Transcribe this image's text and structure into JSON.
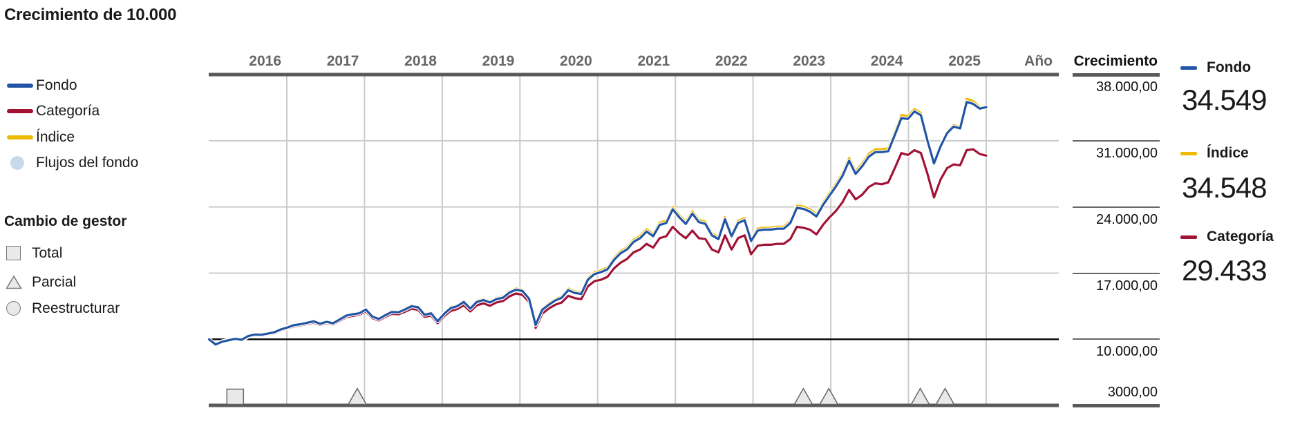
{
  "title": "Crecimiento de 10.000",
  "colors": {
    "fondo": "#2155a4",
    "categoria": "#a11235",
    "indice": "#efbb00",
    "flujos": "#c9d9ec",
    "grid": "#cbcbcb",
    "axis": "#595959",
    "baseline": "#000000",
    "marker_fill": "#e9e9e9",
    "marker_stroke": "#666666",
    "year_text": "#666666"
  },
  "legend": {
    "series": [
      {
        "label": "Fondo",
        "swatch": "dash",
        "color": "#2155a4"
      },
      {
        "label": "Categoría",
        "swatch": "dash",
        "color": "#a11235"
      },
      {
        "label": "Índice",
        "swatch": "dash",
        "color": "#efbb00"
      },
      {
        "label": "Flujos del fondo",
        "swatch": "circle",
        "color": "#c9d9ec"
      }
    ],
    "manager_change": {
      "heading": "Cambio de gestor",
      "items": [
        {
          "label": "Total",
          "shape": "square"
        },
        {
          "label": "Parcial",
          "shape": "triangle"
        },
        {
          "label": "Reestructurar",
          "shape": "circle"
        }
      ]
    }
  },
  "axis": {
    "x_label": "Año",
    "years": [
      "2016",
      "2017",
      "2018",
      "2019",
      "2020",
      "2021",
      "2022",
      "2023",
      "2024",
      "2025"
    ],
    "y_label": "Crecimiento",
    "y_ticks": [
      {
        "label": "38.000,00",
        "value": 38000
      },
      {
        "label": "31.000,00",
        "value": 31000
      },
      {
        "label": "24.000,00",
        "value": 24000
      },
      {
        "label": "17.000,00",
        "value": 17000
      },
      {
        "label": "10.000,00",
        "value": 10000
      },
      {
        "label": "3000,00",
        "value": 3000
      }
    ]
  },
  "summary": [
    {
      "label": "Fondo",
      "value": "34.549",
      "color": "#2155a4"
    },
    {
      "label": "Índice",
      "value": "34.548",
      "color": "#efbb00"
    },
    {
      "label": "Categoría",
      "value": "29.433",
      "color": "#a11235"
    }
  ],
  "chart_data": {
    "type": "line",
    "title": "Crecimiento de 10.000",
    "x_start_year": 2016,
    "points_per_year": 12,
    "ylim": [
      3000,
      38000
    ],
    "baseline": 10000,
    "grid_values": [
      31000,
      24000,
      17000
    ],
    "legend_position": "left",
    "series": [
      {
        "name": "Índice",
        "color": "#efbb00",
        "final_label": "34.548",
        "values": [
          10000,
          9480,
          9790,
          9940,
          10090,
          9990,
          10400,
          10550,
          10530,
          10660,
          10810,
          11110,
          11310,
          11560,
          11670,
          11820,
          11970,
          11720,
          11920,
          11770,
          12180,
          12580,
          12730,
          12830,
          13240,
          12480,
          12230,
          12640,
          12990,
          12940,
          13240,
          13600,
          13500,
          12690,
          12840,
          11980,
          12790,
          13400,
          13600,
          14060,
          13350,
          14060,
          14260,
          14010,
          14360,
          14520,
          15070,
          15380,
          15230,
          14430,
          11620,
          13230,
          13790,
          14240,
          14550,
          15360,
          15060,
          14960,
          16470,
          17080,
          17290,
          17590,
          18600,
          19310,
          19710,
          20520,
          20930,
          21640,
          21130,
          22350,
          22550,
          24000,
          23140,
          22430,
          23540,
          22630,
          22430,
          21220,
          20810,
          22930,
          21110,
          22520,
          22830,
          20600,
          21710,
          21810,
          21810,
          21910,
          21910,
          22520,
          24140,
          24040,
          23740,
          23230,
          24440,
          25450,
          26460,
          27570,
          29180,
          27770,
          28580,
          29590,
          30100,
          30100,
          30200,
          31910,
          33720,
          33620,
          34350,
          33950,
          31080,
          28680,
          30480,
          31950,
          32650,
          32450,
          35430,
          35200,
          34550,
          34548
        ]
      },
      {
        "name": "Categoría",
        "color": "#a11235",
        "final_label": "29.433",
        "values": [
          10000,
          9380,
          9700,
          9850,
          9980,
          9900,
          10280,
          10420,
          10400,
          10520,
          10650,
          10950,
          11150,
          11380,
          11480,
          11630,
          11770,
          11540,
          11730,
          11580,
          11960,
          12350,
          12480,
          12600,
          12950,
          12250,
          12000,
          12380,
          12700,
          12650,
          12920,
          13230,
          13130,
          12380,
          12500,
          11700,
          12450,
          13000,
          13200,
          13600,
          12950,
          13600,
          13800,
          13550,
          13900,
          14050,
          14550,
          14850,
          14700,
          13950,
          11200,
          12700,
          13250,
          13650,
          13900,
          14600,
          14350,
          14250,
          15600,
          16150,
          16300,
          16600,
          17500,
          18100,
          18500,
          19200,
          19500,
          20100,
          19700,
          20700,
          20900,
          21900,
          21200,
          20700,
          21500,
          20700,
          20600,
          19500,
          19200,
          21000,
          19500,
          20700,
          21000,
          19000,
          19900,
          20000,
          20000,
          20100,
          20100,
          20600,
          21900,
          21800,
          21600,
          21100,
          22100,
          22900,
          23600,
          24500,
          25800,
          24800,
          25300,
          26100,
          26500,
          26400,
          26600,
          28100,
          29700,
          29500,
          30000,
          29700,
          27500,
          25000,
          26900,
          28100,
          28500,
          28400,
          30000,
          30100,
          29600,
          29433
        ]
      },
      {
        "name": "Fondo",
        "color": "#2155a4",
        "final_label": "34.549",
        "values": [
          10000,
          9450,
          9750,
          9900,
          10050,
          9950,
          10350,
          10500,
          10480,
          10600,
          10750,
          11050,
          11250,
          11500,
          11600,
          11750,
          11900,
          11650,
          11850,
          11700,
          12100,
          12500,
          12650,
          12750,
          13150,
          12400,
          12150,
          12550,
          12900,
          12850,
          13150,
          13500,
          13400,
          12600,
          12750,
          11900,
          12700,
          13300,
          13500,
          13950,
          13250,
          13950,
          14150,
          13900,
          14250,
          14400,
          14950,
          15250,
          15100,
          14300,
          11500,
          13100,
          13650,
          14100,
          14400,
          15200,
          14900,
          14800,
          16300,
          16900,
          17100,
          17400,
          18400,
          19100,
          19500,
          20300,
          20700,
          21400,
          20900,
          22100,
          22300,
          23750,
          22900,
          22200,
          23300,
          22400,
          22200,
          21000,
          20600,
          22700,
          20900,
          22300,
          22600,
          20400,
          21500,
          21600,
          21600,
          21700,
          21700,
          22300,
          23900,
          23800,
          23500,
          23000,
          24200,
          25200,
          26200,
          27300,
          28900,
          27500,
          28300,
          29300,
          29800,
          29800,
          29900,
          31600,
          33400,
          33300,
          34100,
          33700,
          31000,
          28600,
          30400,
          31800,
          32500,
          32300,
          35100,
          34900,
          34400,
          34549
        ]
      }
    ],
    "manager_changes": [
      {
        "type": "total",
        "month": 4.0
      },
      {
        "type": "parcial",
        "month": 22.7
      },
      {
        "type": "parcial",
        "month": 91.0
      },
      {
        "type": "parcial",
        "month": 94.9
      },
      {
        "type": "parcial",
        "month": 108.9
      },
      {
        "type": "parcial",
        "month": 112.7
      }
    ]
  }
}
